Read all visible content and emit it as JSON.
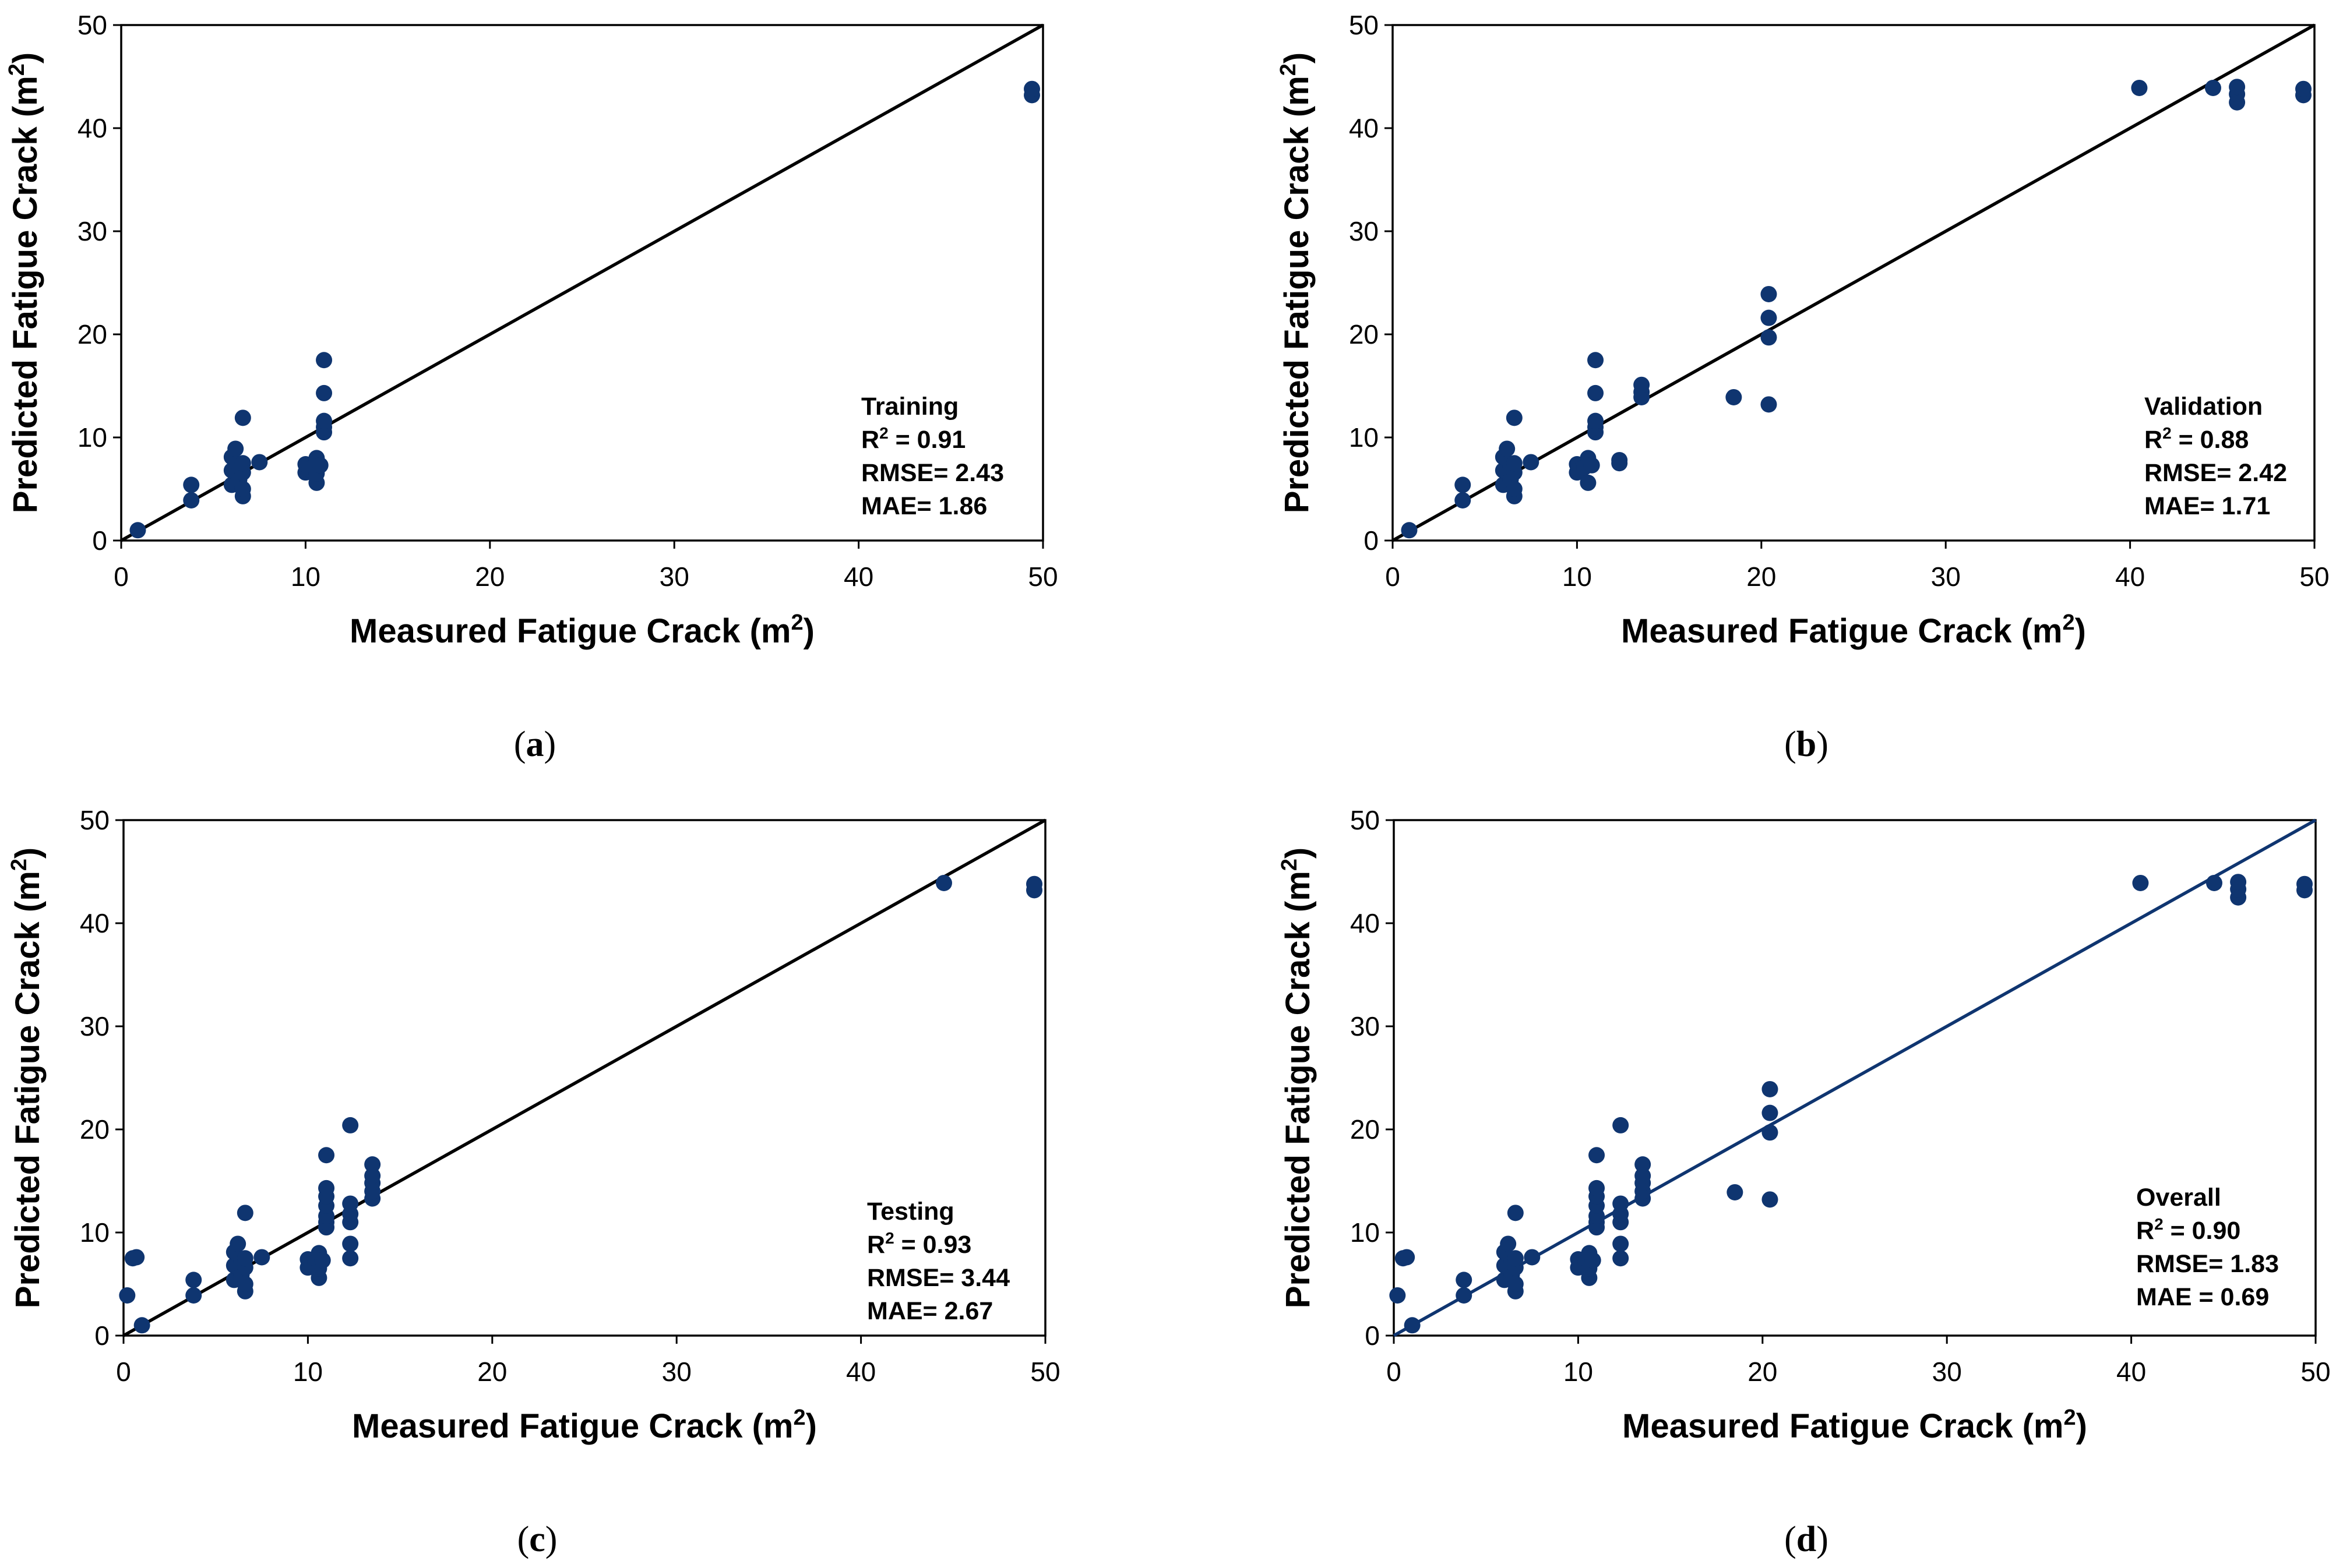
{
  "chart_data": [
    {
      "id": "a",
      "type": "scatter",
      "caption": "(a)",
      "caption_letter": "a",
      "xlabel": "Measured Fatigue Crack",
      "ylabel": "Predicted Fatigue Crack",
      "unit": "(m",
      "unit_sup": "2",
      "unit_close": ")",
      "xlim": [
        0,
        50
      ],
      "ylim": [
        0,
        50
      ],
      "xticks": [
        "0",
        "10",
        "20",
        "30",
        "40",
        "50"
      ],
      "yticks": [
        "0",
        "10",
        "20",
        "30",
        "40",
        "50"
      ],
      "line_color": "#000000",
      "marker_color": "#0f3570",
      "stats": {
        "title": "Training",
        "r2_label": "R",
        "r2_sup": "2",
        "r2_value": " = 0.91",
        "rmse": "RMSE= 2.43",
        "mae": "MAE= 1.86"
      },
      "series": [
        {
          "name": "Training",
          "x": [
            0.9,
            3.8,
            3.8,
            6.0,
            6.0,
            6.0,
            6.2,
            6.4,
            6.4,
            6.6,
            6.6,
            6.6,
            6.6,
            6.6,
            7.5,
            10.0,
            10.0,
            10.2,
            10.4,
            10.6,
            10.6,
            10.6,
            10.8,
            11.0,
            11.0,
            11.0,
            11.0,
            11.0,
            49.4,
            49.4
          ],
          "y": [
            1.0,
            3.9,
            5.4,
            5.4,
            6.8,
            8.1,
            8.9,
            5.9,
            7.2,
            4.3,
            5.0,
            6.6,
            7.5,
            11.9,
            7.6,
            6.6,
            7.4,
            6.9,
            7.1,
            5.6,
            6.5,
            8.0,
            7.3,
            10.5,
            11.0,
            11.6,
            14.3,
            17.5,
            43.2,
            43.8
          ]
        }
      ]
    },
    {
      "id": "b",
      "type": "scatter",
      "caption": "(b)",
      "caption_letter": "b",
      "xlabel": "Measured Fatigue Crack",
      "ylabel": "Predicted Fatigue Crack",
      "unit": "(m",
      "unit_sup": "2",
      "unit_close": ")",
      "xlim": [
        0,
        50
      ],
      "ylim": [
        0,
        50
      ],
      "xticks": [
        "0",
        "10",
        "20",
        "30",
        "40",
        "50"
      ],
      "yticks": [
        "0",
        "10",
        "20",
        "30",
        "40",
        "50"
      ],
      "line_color": "#000000",
      "marker_color": "#0f3570",
      "stats": {
        "title": "Validation",
        "r2_label": "R",
        "r2_sup": "2",
        "r2_value": " = 0.88",
        "rmse": "RMSE= 2.42",
        "mae": "MAE= 1.71"
      },
      "series": [
        {
          "name": "Validation",
          "x": [
            0.9,
            3.8,
            3.8,
            6.0,
            6.0,
            6.0,
            6.2,
            6.4,
            6.4,
            6.6,
            6.6,
            6.6,
            6.6,
            6.6,
            7.5,
            10.0,
            10.0,
            10.2,
            10.4,
            10.6,
            10.6,
            10.8,
            11.0,
            11.0,
            11.0,
            11.0,
            11.0,
            12.3,
            12.3,
            13.5,
            13.5,
            13.5,
            18.5,
            20.4,
            20.4,
            20.4,
            20.4,
            40.5,
            44.5,
            45.8,
            45.8,
            45.8,
            49.4,
            49.4
          ],
          "y": [
            1.0,
            3.9,
            5.4,
            5.4,
            6.8,
            8.1,
            8.9,
            5.9,
            7.2,
            4.3,
            5.0,
            6.6,
            7.5,
            11.9,
            7.6,
            6.6,
            7.4,
            6.9,
            7.1,
            5.6,
            8.0,
            7.3,
            10.5,
            11.0,
            11.6,
            14.3,
            17.5,
            7.5,
            7.8,
            13.9,
            14.4,
            15.1,
            13.9,
            13.2,
            19.7,
            21.6,
            23.9,
            43.9,
            43.9,
            42.5,
            43.3,
            44.0,
            43.2,
            43.8
          ]
        }
      ]
    },
    {
      "id": "c",
      "type": "scatter",
      "caption": "(c)",
      "caption_letter": "c",
      "xlabel": "Measured Fatigue Crack",
      "ylabel": "Predicted Fatigue Crack",
      "unit": "(m",
      "unit_sup": "2",
      "unit_close": ")",
      "xlim": [
        0,
        50
      ],
      "ylim": [
        0,
        50
      ],
      "xticks": [
        "0",
        "10",
        "20",
        "30",
        "40",
        "50"
      ],
      "yticks": [
        "0",
        "10",
        "20",
        "30",
        "40",
        "50"
      ],
      "line_color": "#000000",
      "marker_color": "#0f3570",
      "stats": {
        "title": "Testing",
        "r2_label": "R",
        "r2_sup": "2",
        "r2_value": " = 0.93",
        "rmse": "RMSE= 3.44",
        "mae": "MAE= 2.67"
      },
      "series": [
        {
          "name": "Testing",
          "x": [
            0.2,
            0.5,
            0.7,
            1.0,
            3.8,
            3.8,
            6.0,
            6.0,
            6.0,
            6.2,
            6.4,
            6.4,
            6.6,
            6.6,
            6.6,
            6.6,
            6.6,
            7.5,
            10.0,
            10.0,
            10.2,
            10.4,
            10.6,
            10.6,
            10.6,
            10.8,
            11.0,
            11.0,
            11.0,
            11.0,
            11.0,
            11.0,
            11.0,
            12.3,
            12.3,
            12.3,
            12.3,
            12.3,
            12.3,
            13.5,
            13.5,
            13.5,
            13.5,
            13.5,
            44.5,
            49.4,
            49.4
          ],
          "y": [
            3.9,
            7.5,
            7.6,
            1.0,
            3.9,
            5.4,
            5.4,
            6.8,
            8.1,
            8.9,
            5.9,
            7.2,
            4.3,
            5.0,
            6.6,
            7.5,
            11.9,
            7.6,
            6.6,
            7.4,
            6.9,
            7.1,
            5.6,
            6.5,
            8.0,
            7.3,
            10.5,
            11.0,
            11.6,
            12.6,
            13.5,
            14.3,
            17.5,
            7.5,
            8.9,
            11.0,
            11.8,
            12.8,
            20.4,
            13.3,
            14.0,
            14.8,
            15.5,
            16.6,
            43.9,
            43.2,
            43.8
          ]
        }
      ]
    },
    {
      "id": "d",
      "type": "scatter",
      "caption": "(d)",
      "caption_letter": "d",
      "xlabel": "Measured Fatigue Crack",
      "ylabel": "Predicted Fatigue Crack",
      "unit": "(m",
      "unit_sup": "2",
      "unit_close": ")",
      "xlim": [
        0,
        50
      ],
      "ylim": [
        0,
        50
      ],
      "xticks": [
        "0",
        "10",
        "20",
        "30",
        "40",
        "50"
      ],
      "yticks": [
        "0",
        "10",
        "20",
        "30",
        "40",
        "50"
      ],
      "line_color": "#0f3570",
      "marker_color": "#0f3570",
      "stats": {
        "title": "Overall",
        "r2_label": "R",
        "r2_sup": "2",
        "r2_value": " = 0.90",
        "rmse": "RMSE= 1.83",
        "mae": "MAE = 0.69"
      },
      "series": [
        {
          "name": "Overall",
          "x": [
            0.2,
            0.5,
            0.7,
            1.0,
            3.8,
            3.8,
            6.0,
            6.0,
            6.0,
            6.2,
            6.4,
            6.4,
            6.6,
            6.6,
            6.6,
            6.6,
            6.6,
            7.5,
            10.0,
            10.0,
            10.2,
            10.4,
            10.6,
            10.6,
            10.6,
            10.8,
            11.0,
            11.0,
            11.0,
            11.0,
            11.0,
            11.0,
            11.0,
            12.3,
            12.3,
            12.3,
            12.3,
            12.3,
            12.3,
            13.5,
            13.5,
            13.5,
            13.5,
            13.5,
            18.5,
            20.4,
            20.4,
            20.4,
            20.4,
            40.5,
            44.5,
            45.8,
            45.8,
            45.8,
            49.4,
            49.4
          ],
          "y": [
            3.9,
            7.5,
            7.6,
            1.0,
            3.9,
            5.4,
            5.4,
            6.8,
            8.1,
            8.9,
            5.9,
            7.2,
            4.3,
            5.0,
            6.6,
            7.5,
            11.9,
            7.6,
            6.6,
            7.4,
            6.9,
            7.1,
            5.6,
            6.5,
            8.0,
            7.3,
            10.5,
            11.0,
            11.6,
            12.6,
            13.5,
            14.3,
            17.5,
            7.5,
            8.9,
            11.0,
            11.8,
            12.8,
            20.4,
            13.3,
            14.0,
            14.8,
            15.5,
            16.6,
            13.9,
            13.2,
            19.7,
            21.6,
            23.9,
            43.9,
            43.9,
            42.5,
            43.3,
            44.0,
            43.2,
            43.8
          ]
        }
      ]
    }
  ]
}
